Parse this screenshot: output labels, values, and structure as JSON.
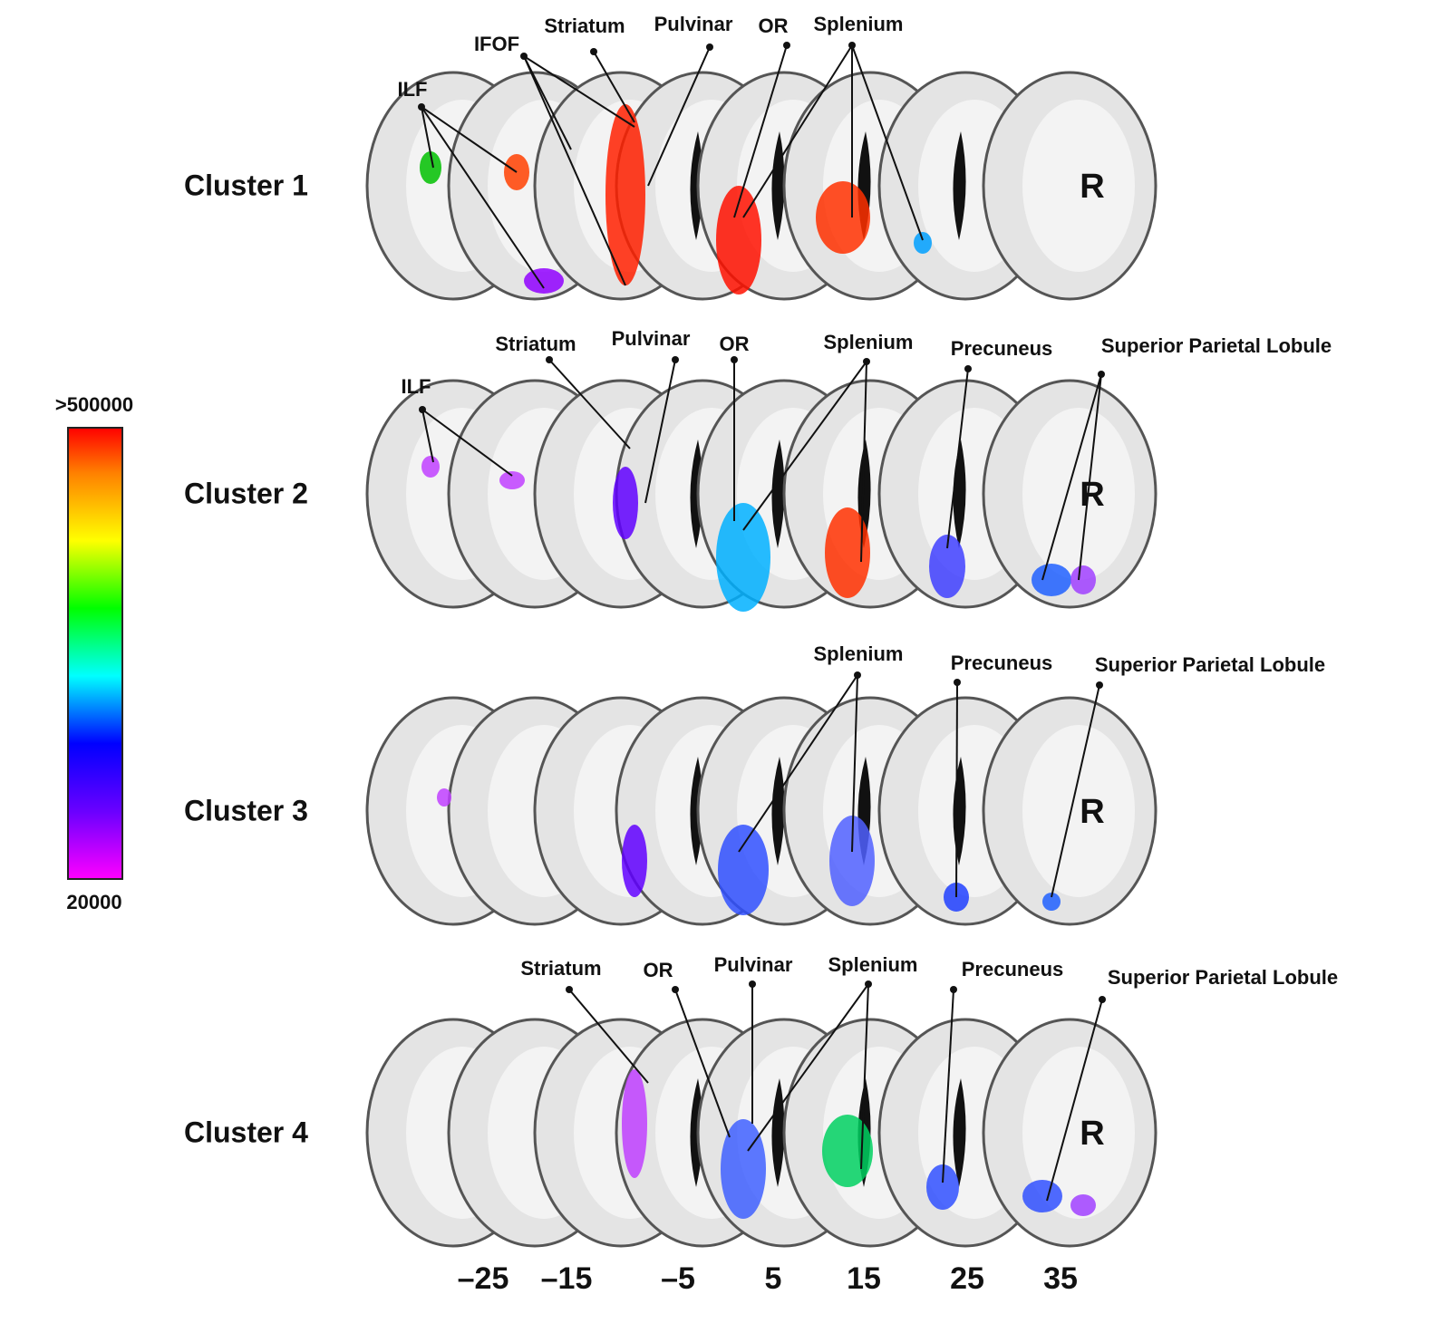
{
  "colorbar": {
    "max_label": ">500000",
    "min_label": "20000"
  },
  "clusters": [
    {
      "label": "Cluster 1",
      "side_label": "R",
      "annotations": [
        "ILF",
        "IFOF",
        "Striatum",
        "Pulvinar",
        "OR",
        "Splenium"
      ]
    },
    {
      "label": "Cluster 2",
      "side_label": "R",
      "annotations": [
        "ILF",
        "Striatum",
        "Pulvinar",
        "OR",
        "Splenium",
        "Precuneus",
        "Superior Parietal Lobule"
      ]
    },
    {
      "label": "Cluster 3",
      "side_label": "R",
      "annotations": [
        "Splenium",
        "Precuneus",
        "Superior Parietal Lobule"
      ]
    },
    {
      "label": "Cluster 4",
      "side_label": "R",
      "annotations": [
        "Striatum",
        "OR",
        "Pulvinar",
        "Splenium",
        "Precuneus",
        "Superior Parietal Lobule"
      ]
    }
  ],
  "slice_positions": [
    "–25",
    "–15",
    "–5",
    "5",
    "15",
    "25",
    "35"
  ]
}
